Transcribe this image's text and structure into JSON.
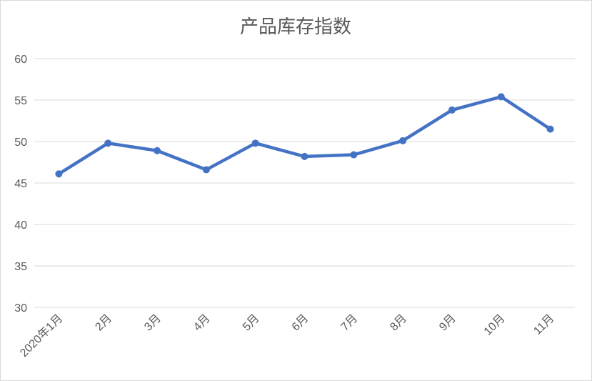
{
  "chart_data": {
    "type": "line",
    "title": "产品库存指数",
    "xlabel": "",
    "ylabel": "",
    "categories": [
      "2020年1月",
      "2月",
      "3月",
      "4月",
      "5月",
      "6月",
      "7月",
      "8月",
      "9月",
      "10月",
      "11月"
    ],
    "series": [
      {
        "values": [
          46.1,
          49.8,
          48.9,
          46.6,
          49.8,
          48.2,
          48.4,
          50.1,
          53.8,
          55.4,
          51.5
        ]
      }
    ],
    "ylim": [
      30,
      60
    ],
    "yticks": [
      30,
      35,
      40,
      45,
      50,
      55,
      60
    ],
    "ytick_labels": [
      "30",
      "35",
      "40",
      "45",
      "50",
      "55",
      "60"
    ],
    "grid": true,
    "legend": "none",
    "colors": {
      "line": "#4472C4",
      "grid": "#d9d9d9",
      "text": "#595959"
    }
  }
}
